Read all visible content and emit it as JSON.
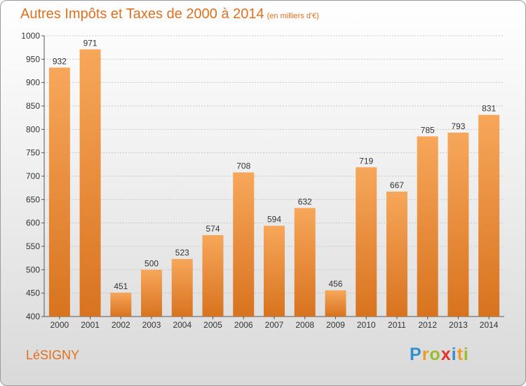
{
  "title": "Autres Impôts et Taxes de 2000 à 2014",
  "subtitle": "(en milliers d'€)",
  "place": "LéSIGNY",
  "logo": {
    "text": "Proxiti",
    "letters": [
      {
        "char": "P",
        "color": "#2f8fd3"
      },
      {
        "char": "r",
        "color": "#f29c1f"
      },
      {
        "char": "o",
        "color": "#9bbd2b"
      },
      {
        "char": "x",
        "color": "#e5322d"
      },
      {
        "char": "i",
        "color": "#2f8fd3"
      },
      {
        "char": "t",
        "color": "#f29c1f"
      },
      {
        "char": "i",
        "color": "#9bbd2b"
      }
    ]
  },
  "colors": {
    "accent": "#e0701e",
    "bar_top": "#f7a75a",
    "bar_bottom": "#d8731f"
  },
  "chart_data": {
    "type": "bar",
    "categories": [
      "2000",
      "2001",
      "2002",
      "2003",
      "2004",
      "2005",
      "2006",
      "2007",
      "2008",
      "2009",
      "2010",
      "2011",
      "2012",
      "2013",
      "2014"
    ],
    "values": [
      932,
      971,
      451,
      500,
      523,
      574,
      708,
      594,
      632,
      456,
      719,
      667,
      785,
      793,
      831
    ],
    "ylim": [
      400,
      1000
    ],
    "yticks": [
      400,
      450,
      500,
      550,
      600,
      650,
      700,
      750,
      800,
      850,
      900,
      950,
      1000
    ],
    "grid": true
  }
}
